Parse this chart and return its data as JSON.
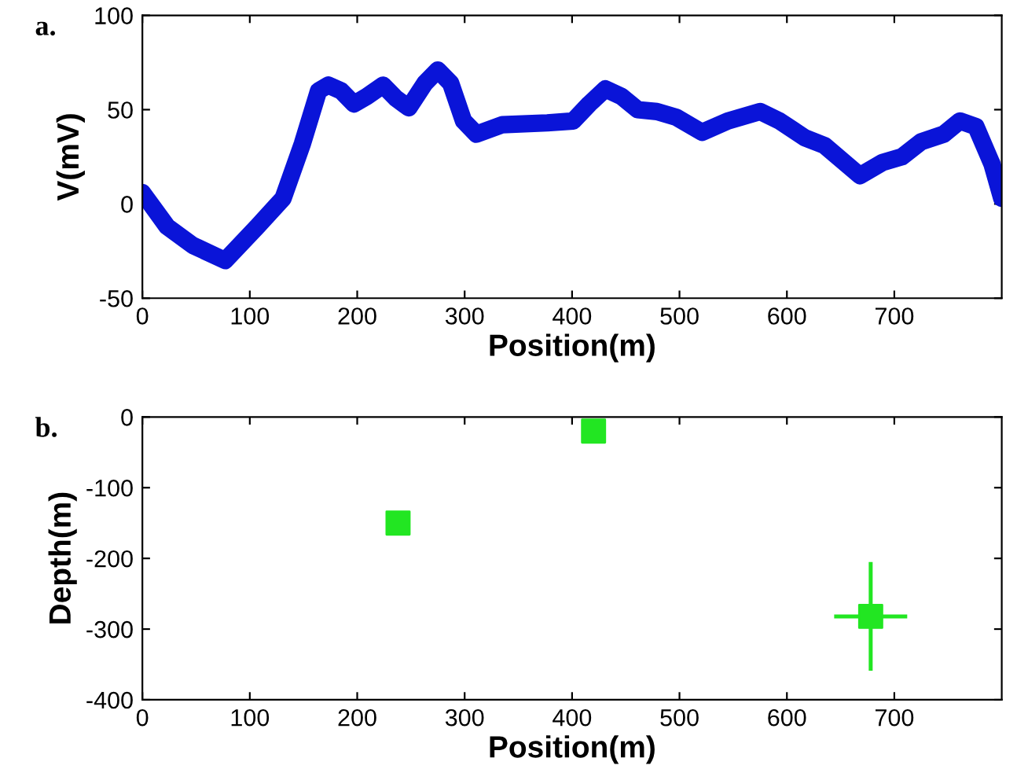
{
  "chart_data": [
    {
      "type": "line",
      "xlabel": "Position(m)",
      "ylabel": "V(mV)",
      "annotations": [
        "a."
      ],
      "xlim": [
        0,
        800
      ],
      "xticks": [
        0,
        100,
        200,
        300,
        400,
        500,
        600,
        700
      ],
      "ylim": [
        -50,
        100
      ],
      "yticks": [
        -50,
        0,
        50,
        100
      ],
      "grid": false,
      "legend": false,
      "marker": "none",
      "line_style": "solid",
      "series": [
        {
          "color": "#0a14d8",
          "x": [
            0,
            23,
            47,
            77,
            107,
            131,
            149,
            164,
            173,
            185,
            197,
            209,
            224,
            236,
            248,
            263,
            275,
            287,
            299,
            311,
            335,
            377,
            401,
            416,
            431,
            446,
            461,
            479,
            497,
            521,
            545,
            575,
            593,
            617,
            635,
            668,
            689,
            707,
            725,
            746,
            761,
            776,
            791,
            800
          ],
          "values": [
            6,
            -12,
            -22,
            -30,
            -12,
            3,
            32,
            60,
            63,
            60,
            53,
            57,
            63,
            56,
            51,
            64,
            71,
            64,
            44,
            37,
            42,
            43,
            44,
            53,
            61,
            57,
            50,
            49,
            46,
            38,
            44,
            49,
            44,
            35,
            31,
            15,
            22,
            25,
            33,
            37,
            44,
            41,
            21,
            3
          ]
        }
      ]
    },
    {
      "type": "scatter",
      "xlabel": "Position(m)",
      "ylabel": "Depth(m)",
      "annotations": [
        "b."
      ],
      "xlim": [
        0,
        800
      ],
      "xticks": [
        0,
        100,
        200,
        300,
        400,
        500,
        600,
        700
      ],
      "ylim": [
        -400,
        0
      ],
      "yticks": [
        -400,
        -300,
        -200,
        -100,
        0
      ],
      "grid": false,
      "legend": false,
      "marker": "square",
      "series": [
        {
          "color": "#22e622",
          "x": [
            238,
            420,
            678
          ],
          "values": [
            -150,
            -20,
            -282
          ],
          "errors": [
            null,
            null,
            77
          ],
          "xerrors": [
            null,
            null,
            34
          ]
        }
      ]
    }
  ]
}
